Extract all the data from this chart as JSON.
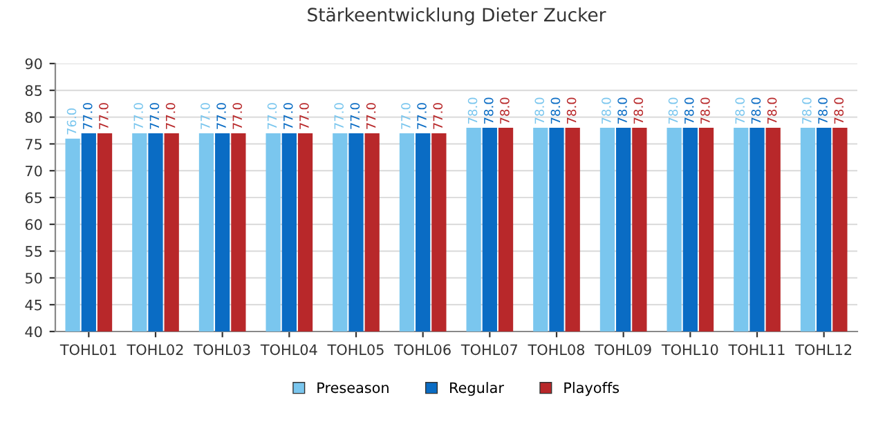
{
  "chart_data": {
    "type": "bar",
    "title": "Stärkeentwicklung Dieter Zucker",
    "categories": [
      "TOHL01",
      "TOHL02",
      "TOHL03",
      "TOHL04",
      "TOHL05",
      "TOHL06",
      "TOHL07",
      "TOHL08",
      "TOHL09",
      "TOHL10",
      "TOHL11",
      "TOHL12"
    ],
    "series": [
      {
        "name": "Preseason",
        "color": "#7ac6ee",
        "values": [
          76,
          77,
          77,
          77,
          77,
          77,
          78,
          78,
          78,
          78,
          78,
          78
        ],
        "value_labels": [
          "76.0",
          "77.0",
          "77.0",
          "77.0",
          "77.0",
          "77.0",
          "78.0",
          "78.0",
          "78.0",
          "78.0",
          "78.0",
          "78.0"
        ]
      },
      {
        "name": "Regular",
        "color": "#0a6cc4",
        "values": [
          77,
          77,
          77,
          77,
          77,
          77,
          78,
          78,
          78,
          78,
          78,
          78
        ],
        "value_labels": [
          "77.0",
          "77.0",
          "77.0",
          "77.0",
          "77.0",
          "77.0",
          "78.0",
          "78.0",
          "78.0",
          "78.0",
          "78.0",
          "78.0"
        ]
      },
      {
        "name": "Playoffs",
        "color": "#b8282a",
        "values": [
          77,
          77,
          77,
          77,
          77,
          77,
          78,
          78,
          78,
          78,
          78,
          78
        ],
        "value_labels": [
          "77.0",
          "77.0",
          "77.0",
          "77.0",
          "77.0",
          "77.0",
          "78.0",
          "78.0",
          "78.0",
          "78.0",
          "78.0",
          "78.0"
        ]
      }
    ],
    "ylim": [
      40,
      90
    ],
    "yticks": [
      40,
      45,
      50,
      55,
      60,
      65,
      70,
      75,
      80,
      85,
      90
    ],
    "grid": "y",
    "legend": "bottom"
  }
}
